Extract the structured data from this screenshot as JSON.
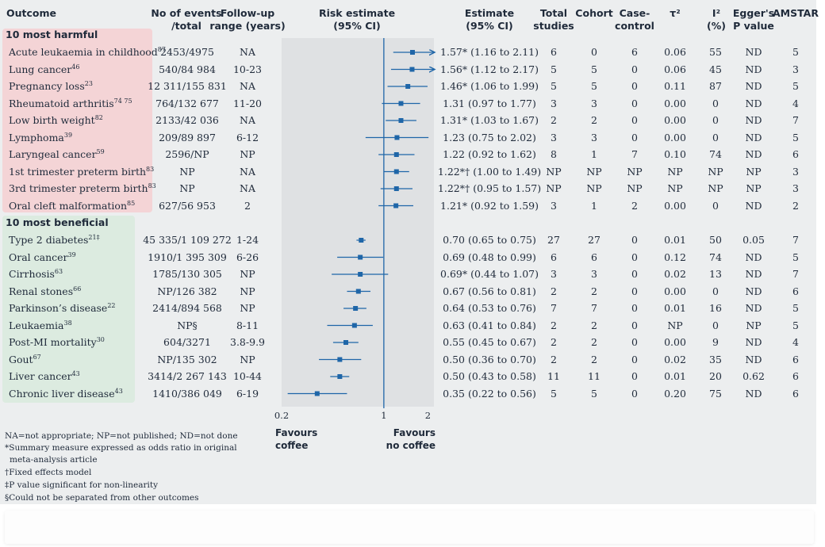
{
  "headers": {
    "outcome": "Outcome",
    "events_l1": "No of events",
    "events_l2": "/total",
    "followup_l1": "Follow-up",
    "followup_l2": "range (years)",
    "risk_l1": "Risk estimate",
    "risk_l2": "(95% CI)",
    "estimate_l1": "Estimate",
    "estimate_l2": "(95% CI)",
    "total_l1": "Total",
    "total_l2": "studies",
    "cohort_l1": "Cohort",
    "casecontrol_l1": "Case-",
    "casecontrol_l2": "control",
    "tau_l1": "τ²",
    "i2_l1": "I²",
    "i2_l2": "(%)",
    "egger_l1": "Egger's",
    "egger_l2": "P value",
    "amstar_l1": "AMSTAR"
  },
  "groups": {
    "harmful": "10 most harmful",
    "beneficial": "10 most beneficial"
  },
  "chart_data": {
    "type": "forest",
    "scale": "log",
    "xlim": [
      0.2,
      2.2
    ],
    "reference_line": 1,
    "xticks": [
      "0.2",
      "1",
      "2"
    ],
    "favours_left": [
      "Favours",
      "coffee"
    ],
    "favours_right": [
      "Favours",
      "no coffee"
    ],
    "rows": [
      {
        "group": "harmful",
        "outcome": "Acute leukaemia in childhood",
        "ref": "87",
        "events": "2453/4975",
        "followup": "NA",
        "est": 1.57,
        "lo": 1.16,
        "hi": 2.11,
        "arrow": true,
        "estimate_text": "1.57* (1.16 to 2.11)",
        "total": "6",
        "cohort": "0",
        "cc": "6",
        "tau": "0.06",
        "i2": "55",
        "egger": "ND",
        "amstar": "5"
      },
      {
        "group": "harmful",
        "outcome": "Lung cancer",
        "ref": "46",
        "events": "540/84 984",
        "followup": "10-23",
        "est": 1.56,
        "lo": 1.12,
        "hi": 2.17,
        "arrow": true,
        "estimate_text": "1.56* (1.12 to 2.17)",
        "total": "5",
        "cohort": "5",
        "cc": "0",
        "tau": "0.06",
        "i2": "45",
        "egger": "ND",
        "amstar": "3"
      },
      {
        "group": "harmful",
        "outcome": "Pregnancy loss",
        "ref": "23",
        "events": "12 311/155 831",
        "followup": "NA",
        "est": 1.46,
        "lo": 1.06,
        "hi": 1.99,
        "arrow": false,
        "estimate_text": "1.46* (1.06 to 1.99)",
        "total": "5",
        "cohort": "5",
        "cc": "0",
        "tau": "0.11",
        "i2": "87",
        "egger": "ND",
        "amstar": "5"
      },
      {
        "group": "harmful",
        "outcome": "Rheumatoid arthritis",
        "ref": "74 75",
        "events": "764/132 677",
        "followup": "11-20",
        "est": 1.31,
        "lo": 0.97,
        "hi": 1.77,
        "arrow": false,
        "estimate_text": "1.31 (0.97 to 1.77)",
        "total": "3",
        "cohort": "3",
        "cc": "0",
        "tau": "0.00",
        "i2": "0",
        "egger": "ND",
        "amstar": "4"
      },
      {
        "group": "harmful",
        "outcome": "Low birth weight",
        "ref": "82",
        "events": "2133/42 036",
        "followup": "NA",
        "est": 1.31,
        "lo": 1.03,
        "hi": 1.67,
        "arrow": false,
        "estimate_text": "1.31* (1.03 to 1.67)",
        "total": "2",
        "cohort": "2",
        "cc": "0",
        "tau": "0.00",
        "i2": "0",
        "egger": "ND",
        "amstar": "7"
      },
      {
        "group": "harmful",
        "outcome": "Lymphoma",
        "ref": "39",
        "events": "209/89 897",
        "followup": "6-12",
        "est": 1.23,
        "lo": 0.75,
        "hi": 2.02,
        "arrow": false,
        "estimate_text": "1.23 (0.75 to 2.02)",
        "total": "3",
        "cohort": "3",
        "cc": "0",
        "tau": "0.00",
        "i2": "0",
        "egger": "ND",
        "amstar": "5"
      },
      {
        "group": "harmful",
        "outcome": "Laryngeal cancer",
        "ref": "59",
        "events": "2596/NP",
        "followup": "NP",
        "est": 1.22,
        "lo": 0.92,
        "hi": 1.62,
        "arrow": false,
        "estimate_text": "1.22 (0.92 to 1.62)",
        "total": "8",
        "cohort": "1",
        "cc": "7",
        "tau": "0.10",
        "i2": "74",
        "egger": "ND",
        "amstar": "6"
      },
      {
        "group": "harmful",
        "outcome": "1st trimester preterm birth",
        "ref": "83",
        "events": "NP",
        "followup": "NA",
        "est": 1.22,
        "lo": 1.0,
        "hi": 1.49,
        "arrow": false,
        "estimate_text": "1.22*† (1.00 to 1.49)",
        "total": "NP",
        "cohort": "NP",
        "cc": "NP",
        "tau": "NP",
        "i2": "NP",
        "egger": "NP",
        "amstar": "3"
      },
      {
        "group": "harmful",
        "outcome": "3rd trimester preterm birth",
        "ref": "83",
        "events": "NP",
        "followup": "NA",
        "est": 1.22,
        "lo": 0.95,
        "hi": 1.57,
        "arrow": false,
        "estimate_text": "1.22*† (0.95 to 1.57)",
        "total": "NP",
        "cohort": "NP",
        "cc": "NP",
        "tau": "NP",
        "i2": "NP",
        "egger": "NP",
        "amstar": "3"
      },
      {
        "group": "harmful",
        "outcome": "Oral cleft malformation",
        "ref": "85",
        "events": "627/56 953",
        "followup": "2",
        "est": 1.21,
        "lo": 0.92,
        "hi": 1.59,
        "arrow": false,
        "estimate_text": "1.21* (0.92 to 1.59)",
        "total": "3",
        "cohort": "1",
        "cc": "2",
        "tau": "0.00",
        "i2": "0",
        "egger": "ND",
        "amstar": "2"
      },
      {
        "group": "beneficial",
        "outcome": "Type 2 diabetes",
        "ref": "21‡",
        "events": "45 335/1 109 272",
        "followup": "1-24",
        "est": 0.7,
        "lo": 0.65,
        "hi": 0.75,
        "arrow": false,
        "estimate_text": "0.70 (0.65 to 0.75)",
        "total": "27",
        "cohort": "27",
        "cc": "0",
        "tau": "0.01",
        "i2": "50",
        "egger": "0.05",
        "amstar": "7"
      },
      {
        "group": "beneficial",
        "outcome": "Oral cancer",
        "ref": "39",
        "events": "1910/1 395 309",
        "followup": "6-26",
        "est": 0.69,
        "lo": 0.48,
        "hi": 0.99,
        "arrow": false,
        "estimate_text": "0.69 (0.48 to 0.99)",
        "total": "6",
        "cohort": "6",
        "cc": "0",
        "tau": "0.12",
        "i2": "74",
        "egger": "ND",
        "amstar": "5"
      },
      {
        "group": "beneficial",
        "outcome": "Cirrhosis",
        "ref": "63",
        "events": "1785/130 305",
        "followup": "NP",
        "est": 0.69,
        "lo": 0.44,
        "hi": 1.07,
        "arrow": false,
        "estimate_text": "0.69* (0.44 to 1.07)",
        "total": "3",
        "cohort": "3",
        "cc": "0",
        "tau": "0.02",
        "i2": "13",
        "egger": "ND",
        "amstar": "7"
      },
      {
        "group": "beneficial",
        "outcome": "Renal stones",
        "ref": "66",
        "events": "NP/126 382",
        "followup": "NP",
        "est": 0.67,
        "lo": 0.56,
        "hi": 0.81,
        "arrow": false,
        "estimate_text": "0.67 (0.56 to 0.81)",
        "total": "2",
        "cohort": "2",
        "cc": "0",
        "tau": "0.00",
        "i2": "0",
        "egger": "ND",
        "amstar": "6"
      },
      {
        "group": "beneficial",
        "outcome": "Parkinson’s disease",
        "ref": "22",
        "events": "2414/894 568",
        "followup": "NP",
        "est": 0.64,
        "lo": 0.53,
        "hi": 0.76,
        "arrow": false,
        "estimate_text": "0.64 (0.53 to 0.76)",
        "total": "7",
        "cohort": "7",
        "cc": "0",
        "tau": "0.01",
        "i2": "16",
        "egger": "ND",
        "amstar": "5"
      },
      {
        "group": "beneficial",
        "outcome": "Leukaemia",
        "ref": "38",
        "events": "NP§",
        "followup": "8-11",
        "est": 0.63,
        "lo": 0.41,
        "hi": 0.84,
        "arrow": false,
        "estimate_text": "0.63 (0.41 to 0.84)",
        "total": "2",
        "cohort": "2",
        "cc": "0",
        "tau": "NP",
        "i2": "0",
        "egger": "NP",
        "amstar": "5"
      },
      {
        "group": "beneficial",
        "outcome": "Post-MI mortality",
        "ref": "30",
        "events": "604/3271",
        "followup": "3.8-9.9",
        "est": 0.55,
        "lo": 0.45,
        "hi": 0.67,
        "arrow": false,
        "estimate_text": "0.55 (0.45 to 0.67)",
        "total": "2",
        "cohort": "2",
        "cc": "0",
        "tau": "0.00",
        "i2": "9",
        "egger": "ND",
        "amstar": "4"
      },
      {
        "group": "beneficial",
        "outcome": "Gout",
        "ref": "67",
        "events": "NP/135 302",
        "followup": "NP",
        "est": 0.5,
        "lo": 0.36,
        "hi": 0.7,
        "arrow": false,
        "estimate_text": "0.50 (0.36 to 0.70)",
        "total": "2",
        "cohort": "2",
        "cc": "0",
        "tau": "0.02",
        "i2": "35",
        "egger": "ND",
        "amstar": "6"
      },
      {
        "group": "beneficial",
        "outcome": "Liver cancer",
        "ref": "43",
        "events": "3414/2 267 143",
        "followup": "10-44",
        "est": 0.5,
        "lo": 0.43,
        "hi": 0.58,
        "arrow": false,
        "estimate_text": "0.50 (0.43 to 0.58)",
        "total": "11",
        "cohort": "11",
        "cc": "0",
        "tau": "0.01",
        "i2": "20",
        "egger": "0.62",
        "amstar": "6"
      },
      {
        "group": "beneficial",
        "outcome": "Chronic liver disease",
        "ref": "43",
        "events": "1410/386 049",
        "followup": "6-19",
        "est": 0.35,
        "lo": 0.22,
        "hi": 0.56,
        "arrow": false,
        "estimate_text": "0.35 (0.22 to 0.56)",
        "total": "5",
        "cohort": "5",
        "cc": "0",
        "tau": "0.20",
        "i2": "75",
        "egger": "ND",
        "amstar": "6"
      }
    ]
  },
  "footnotes": [
    "NA=not appropriate; NP=not published; ND=not done",
    "*Summary measure expressed as odds ratio in original",
    "meta-analysis article",
    "†Fixed effects model",
    "‡P value significant for non-linearity",
    "§Could not be separated from other outcomes"
  ],
  "colors": {
    "harmful_bg": "#f4d4d6",
    "beneficial_bg": "#dcebe0",
    "plot_bg": "#dfe1e3",
    "marker": "#1f66a8",
    "text": "#1f2a3a"
  }
}
